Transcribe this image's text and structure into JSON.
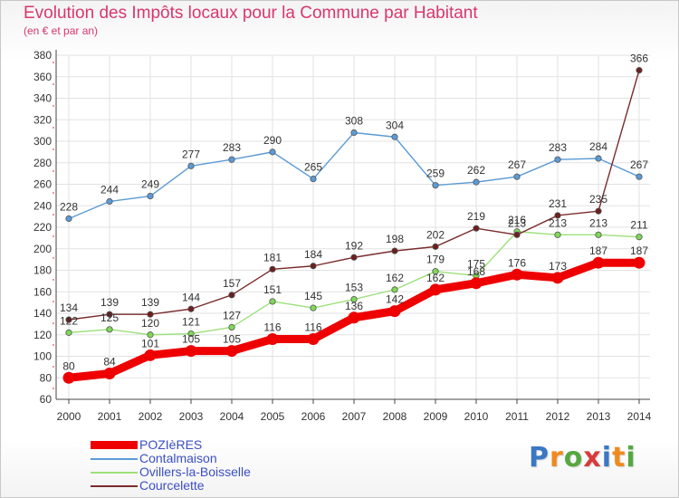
{
  "title": "Evolution des Impôts locaux pour la Commune par Habitant",
  "subtitle": "(en € et par an)",
  "logo": {
    "text": "Proxiti",
    "letters": [
      {
        "ch": "P",
        "color": "#3a78c3"
      },
      {
        "ch": "r",
        "color": "#f08a1d"
      },
      {
        "ch": "o",
        "color": "#56a840"
      },
      {
        "ch": "x",
        "color": "#d93a3a"
      },
      {
        "ch": "i",
        "color": "#3a78c3"
      },
      {
        "ch": "t",
        "color": "#f08a1d"
      },
      {
        "ch": "i",
        "color": "#56a840"
      }
    ]
  },
  "chart_data": {
    "type": "line",
    "title": "Evolution des Impôts locaux pour la Commune par Habitant",
    "subtitle": "(en € et par an)",
    "x": [
      "2000",
      "2001",
      "2002",
      "2003",
      "2004",
      "2005",
      "2006",
      "2007",
      "2008",
      "2009",
      "2010",
      "2011",
      "2012",
      "2013",
      "2014"
    ],
    "ylim": [
      60,
      380
    ],
    "ystep": 20,
    "grid": true,
    "legend_position": "bottom-left",
    "series": [
      {
        "name": "POZIèRES",
        "color": "#ee0000",
        "marker": "#ee0000",
        "bold": true,
        "values": [
          80,
          84,
          101,
          105,
          105,
          116,
          116,
          136,
          142,
          162,
          168,
          176,
          173,
          187,
          187
        ]
      },
      {
        "name": "Contalmaison",
        "color": "#5b9bd5",
        "marker": "#5b9bd5",
        "bold": false,
        "values": [
          228,
          244,
          249,
          277,
          283,
          290,
          265,
          308,
          304,
          259,
          262,
          267,
          283,
          284,
          267
        ]
      },
      {
        "name": "Ovillers-la-Boisselle",
        "color": "#9de07a",
        "marker": "#7ed957",
        "bold": false,
        "values": [
          122,
          125,
          120,
          121,
          127,
          151,
          145,
          153,
          162,
          179,
          175,
          216,
          213,
          213,
          211
        ]
      },
      {
        "name": "Courcelette",
        "color": "#7a2c2c",
        "marker": "#6b1f1f",
        "bold": false,
        "values": [
          134,
          139,
          139,
          144,
          157,
          181,
          184,
          192,
          198,
          202,
          219,
          213,
          231,
          235,
          366
        ]
      }
    ]
  }
}
